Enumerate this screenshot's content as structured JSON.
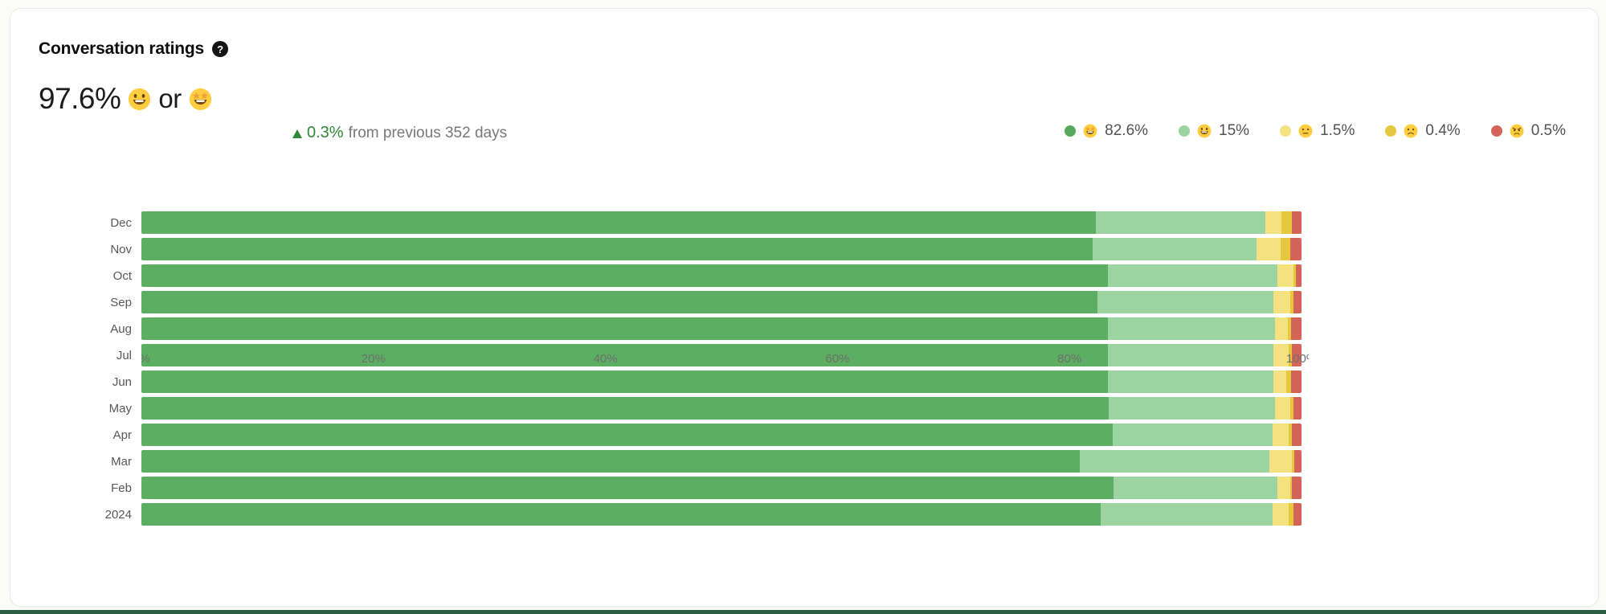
{
  "page": {
    "bottom_strip_color": "#2c5f41",
    "card_background": "#ffffff",
    "page_background": "#fbfbf9"
  },
  "header": {
    "title": "Conversation ratings",
    "help_icon": "question-mark-circle-icon"
  },
  "summary": {
    "value": "97.6%",
    "emoji_primary_name": "grinning",
    "emoji_primary_char": "😃",
    "conjunction": "or",
    "emoji_secondary_name": "star-struck",
    "emoji_secondary_char": "🤩",
    "change": {
      "direction": "up",
      "value": "0.3%",
      "label": "from previous 352 days",
      "color": "#2f8a35"
    }
  },
  "legend": {
    "items": [
      {
        "emoji_name": "star-struck",
        "emoji_char": "🤩",
        "value": "82.6%",
        "color": "#57a95d"
      },
      {
        "emoji_name": "grinning",
        "emoji_char": "😃",
        "value": "15%",
        "color": "#9bd4a1"
      },
      {
        "emoji_name": "neutral",
        "emoji_char": "😐",
        "value": "1.5%",
        "color": "#f4e17f"
      },
      {
        "emoji_name": "frowning",
        "emoji_char": "🙁",
        "value": "0.4%",
        "color": "#e6c83e"
      },
      {
        "emoji_name": "angry",
        "emoji_char": "😠",
        "value": "0.5%",
        "color": "#d26557"
      }
    ]
  },
  "chart_data": {
    "type": "bar",
    "orientation": "horizontal",
    "stacked": true,
    "grid": false,
    "legend_position": "top-right",
    "categories": [
      "Dec",
      "Nov",
      "Oct",
      "Sep",
      "Aug",
      "Jul",
      "Jun",
      "May",
      "Apr",
      "Mar",
      "Feb",
      "2024"
    ],
    "series": [
      {
        "name": "amazing",
        "emoji_name": "star-struck",
        "color": "#5cae62",
        "values": [
          82.3,
          82.0,
          83.3,
          82.4,
          83.3,
          83.3,
          83.3,
          83.4,
          83.7,
          80.9,
          83.8,
          82.7
        ]
      },
      {
        "name": "great",
        "emoji_name": "grinning",
        "color": "#9bd4a1",
        "values": [
          14.6,
          14.1,
          14.6,
          15.2,
          14.4,
          14.3,
          14.3,
          14.3,
          13.8,
          16.3,
          14.1,
          14.8
        ]
      },
      {
        "name": "ok",
        "emoji_name": "neutral",
        "color": "#f4e17f",
        "values": [
          1.4,
          2.1,
          1.4,
          1.4,
          1.1,
          1.3,
          1.1,
          1.3,
          1.4,
          2.0,
          1.1,
          1.4
        ]
      },
      {
        "name": "bad",
        "emoji_name": "frowning",
        "color": "#e6c83e",
        "values": [
          0.9,
          0.8,
          0.2,
          0.3,
          0.3,
          0.3,
          0.4,
          0.3,
          0.3,
          0.2,
          0.2,
          0.4
        ]
      },
      {
        "name": "terrible",
        "emoji_name": "angry",
        "color": "#d26557",
        "values": [
          0.8,
          1.0,
          0.5,
          0.7,
          0.9,
          0.8,
          0.9,
          0.7,
          0.8,
          0.6,
          0.8,
          0.7
        ]
      }
    ],
    "x_axis": {
      "ticks": [
        "0%",
        "20%",
        "40%",
        "60%",
        "80%",
        "100%"
      ],
      "range": [
        0,
        100
      ]
    }
  }
}
